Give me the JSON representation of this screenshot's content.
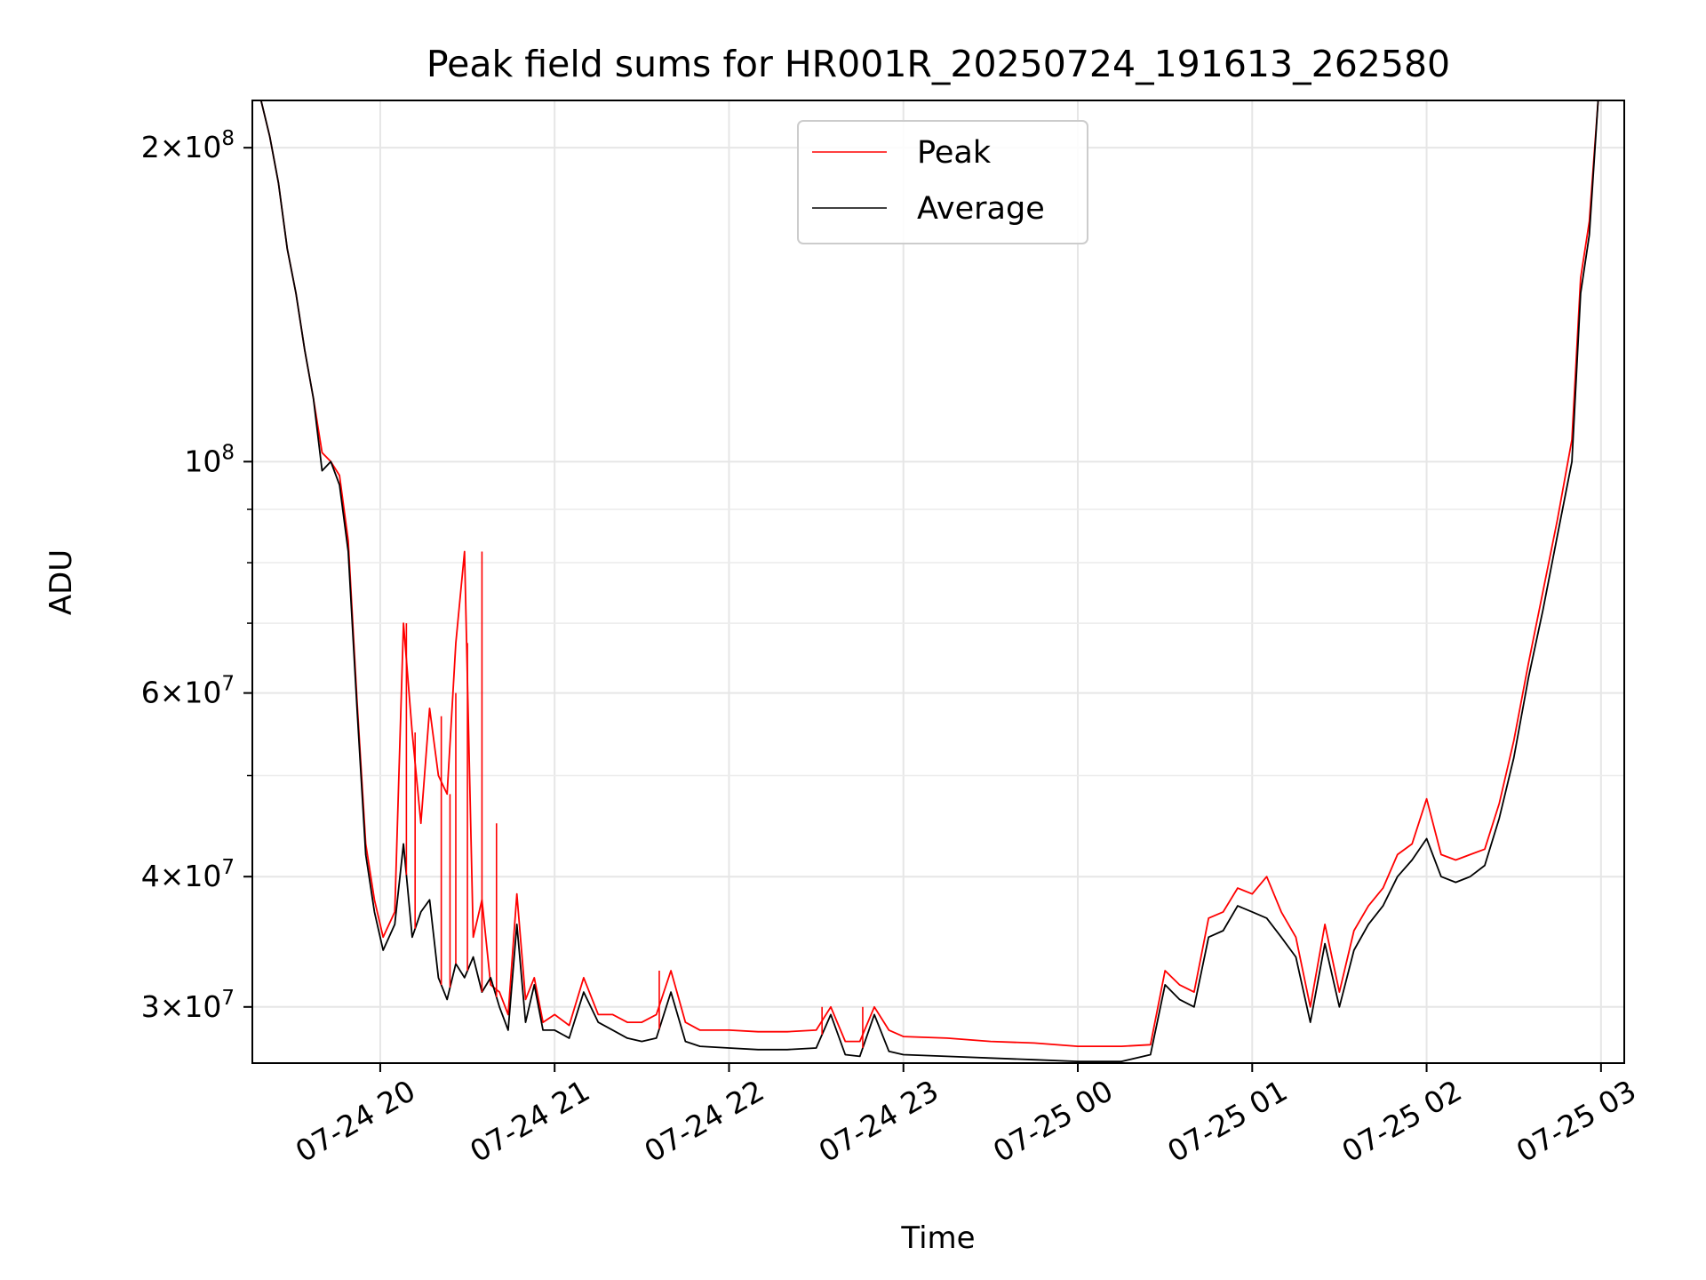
{
  "chart_data": {
    "type": "line",
    "title": "Peak field sums for HR001R_20250724_191613_262580",
    "xlabel": "Time",
    "ylabel": "ADU",
    "y_scale": "log",
    "ylim": [
      26500000,
      222000000
    ],
    "xlim": [
      "2025-07-24 19:16",
      "2025-07-25 03:08"
    ],
    "grid": true,
    "legend_position": "top-center",
    "x_ticks": [
      {
        "value": "2025-07-24 20:00",
        "label": "07-24 20"
      },
      {
        "value": "2025-07-24 21:00",
        "label": "07-24 21"
      },
      {
        "value": "2025-07-24 22:00",
        "label": "07-24 22"
      },
      {
        "value": "2025-07-24 23:00",
        "label": "07-24 23"
      },
      {
        "value": "2025-07-25 00:00",
        "label": "07-25 00"
      },
      {
        "value": "2025-07-25 01:00",
        "label": "07-25 01"
      },
      {
        "value": "2025-07-25 02:00",
        "label": "07-25 02"
      },
      {
        "value": "2025-07-25 03:00",
        "label": "07-25 03"
      }
    ],
    "y_major_ticks": [
      {
        "value": 30000000,
        "mantissa": "3",
        "exp": "7"
      },
      {
        "value": 40000000,
        "mantissa": "4",
        "exp": "7"
      },
      {
        "value": 60000000,
        "mantissa": "6",
        "exp": "7"
      },
      {
        "value": 100000000,
        "mantissa": "",
        "exp": "8"
      },
      {
        "value": 200000000,
        "mantissa": "2",
        "exp": "8"
      }
    ],
    "y_minor_ticks": [
      50000000,
      70000000,
      80000000,
      90000000
    ],
    "series": [
      {
        "name": "Average",
        "color": "#000000",
        "x": [
          "2025-07-24 19:16",
          "2025-07-24 19:19",
          "2025-07-24 19:22",
          "2025-07-24 19:25",
          "2025-07-24 19:28",
          "2025-07-24 19:31",
          "2025-07-24 19:34",
          "2025-07-24 19:37",
          "2025-07-24 19:40",
          "2025-07-24 19:43",
          "2025-07-24 19:46",
          "2025-07-24 19:49",
          "2025-07-24 19:52",
          "2025-07-24 19:55",
          "2025-07-24 19:58",
          "2025-07-24 20:01",
          "2025-07-24 20:05",
          "2025-07-24 20:08",
          "2025-07-24 20:11",
          "2025-07-24 20:14",
          "2025-07-24 20:17",
          "2025-07-24 20:20",
          "2025-07-24 20:23",
          "2025-07-24 20:26",
          "2025-07-24 20:29",
          "2025-07-24 20:32",
          "2025-07-24 20:35",
          "2025-07-24 20:38",
          "2025-07-24 20:41",
          "2025-07-24 20:44",
          "2025-07-24 20:47",
          "2025-07-24 20:50",
          "2025-07-24 20:53",
          "2025-07-24 20:56",
          "2025-07-24 21:00",
          "2025-07-24 21:05",
          "2025-07-24 21:10",
          "2025-07-24 21:15",
          "2025-07-24 21:20",
          "2025-07-24 21:25",
          "2025-07-24 21:30",
          "2025-07-24 21:35",
          "2025-07-24 21:40",
          "2025-07-24 21:45",
          "2025-07-24 21:50",
          "2025-07-24 22:00",
          "2025-07-24 22:10",
          "2025-07-24 22:20",
          "2025-07-24 22:30",
          "2025-07-24 22:35",
          "2025-07-24 22:40",
          "2025-07-24 22:45",
          "2025-07-24 22:50",
          "2025-07-24 22:55",
          "2025-07-24 23:00",
          "2025-07-24 23:15",
          "2025-07-24 23:30",
          "2025-07-24 23:45",
          "2025-07-25 00:00",
          "2025-07-25 00:15",
          "2025-07-25 00:25",
          "2025-07-25 00:30",
          "2025-07-25 00:35",
          "2025-07-25 00:40",
          "2025-07-25 00:45",
          "2025-07-25 00:50",
          "2025-07-25 00:55",
          "2025-07-25 01:00",
          "2025-07-25 01:05",
          "2025-07-25 01:10",
          "2025-07-25 01:15",
          "2025-07-25 01:20",
          "2025-07-25 01:25",
          "2025-07-25 01:30",
          "2025-07-25 01:35",
          "2025-07-25 01:40",
          "2025-07-25 01:45",
          "2025-07-25 01:50",
          "2025-07-25 01:55",
          "2025-07-25 02:00",
          "2025-07-25 02:05",
          "2025-07-25 02:10",
          "2025-07-25 02:15",
          "2025-07-25 02:20",
          "2025-07-25 02:25",
          "2025-07-25 02:30",
          "2025-07-25 02:35",
          "2025-07-25 02:40",
          "2025-07-25 02:45",
          "2025-07-25 02:50",
          "2025-07-25 02:53",
          "2025-07-25 02:56",
          "2025-07-25 02:59"
        ],
        "values": [
          222000000,
          222000000,
          205000000,
          185000000,
          160000000,
          145000000,
          128000000,
          115000000,
          98000000,
          100000000,
          95000000,
          82000000,
          58000000,
          42000000,
          37000000,
          34000000,
          36000000,
          43000000,
          35000000,
          37000000,
          38000000,
          32000000,
          30500000,
          33000000,
          32000000,
          33500000,
          31000000,
          32000000,
          30000000,
          28500000,
          36000000,
          29000000,
          31500000,
          28500000,
          28500000,
          28000000,
          31000000,
          29000000,
          28500000,
          28000000,
          27800000,
          28000000,
          31000000,
          27800000,
          27500000,
          27400000,
          27300000,
          27300000,
          27400000,
          29500000,
          27000000,
          26900000,
          29500000,
          27200000,
          27000000,
          26900000,
          26800000,
          26700000,
          26600000,
          26600000,
          27000000,
          31500000,
          30500000,
          30000000,
          35000000,
          35500000,
          37500000,
          37000000,
          36500000,
          35000000,
          33500000,
          29000000,
          34500000,
          30000000,
          34000000,
          36000000,
          37500000,
          40000000,
          41500000,
          43500000,
          40000000,
          39500000,
          40000000,
          41000000,
          45500000,
          52000000,
          62000000,
          72000000,
          85000000,
          100000000,
          145000000,
          165000000,
          222000000
        ]
      },
      {
        "name": "Peak",
        "color": "#ff0000",
        "x": [
          "2025-07-24 19:16",
          "2025-07-24 19:19",
          "2025-07-24 19:22",
          "2025-07-24 19:25",
          "2025-07-24 19:28",
          "2025-07-24 19:31",
          "2025-07-24 19:34",
          "2025-07-24 19:37",
          "2025-07-24 19:40",
          "2025-07-24 19:43",
          "2025-07-24 19:46",
          "2025-07-24 19:49",
          "2025-07-24 19:52",
          "2025-07-24 19:55",
          "2025-07-24 19:58",
          "2025-07-24 20:01",
          "2025-07-24 20:05",
          "2025-07-24 20:08",
          "2025-07-24 20:11",
          "2025-07-24 20:14",
          "2025-07-24 20:17",
          "2025-07-24 20:20",
          "2025-07-24 20:23",
          "2025-07-24 20:26",
          "2025-07-24 20:29",
          "2025-07-24 20:32",
          "2025-07-24 20:35",
          "2025-07-24 20:38",
          "2025-07-24 20:41",
          "2025-07-24 20:44",
          "2025-07-24 20:47",
          "2025-07-24 20:50",
          "2025-07-24 20:53",
          "2025-07-24 20:56",
          "2025-07-24 21:00",
          "2025-07-24 21:05",
          "2025-07-24 21:10",
          "2025-07-24 21:15",
          "2025-07-24 21:20",
          "2025-07-24 21:25",
          "2025-07-24 21:30",
          "2025-07-24 21:35",
          "2025-07-24 21:40",
          "2025-07-24 21:45",
          "2025-07-24 21:50",
          "2025-07-24 22:00",
          "2025-07-24 22:10",
          "2025-07-24 22:20",
          "2025-07-24 22:30",
          "2025-07-24 22:35",
          "2025-07-24 22:40",
          "2025-07-24 22:45",
          "2025-07-24 22:50",
          "2025-07-24 22:55",
          "2025-07-24 23:00",
          "2025-07-24 23:15",
          "2025-07-24 23:30",
          "2025-07-24 23:45",
          "2025-07-25 00:00",
          "2025-07-25 00:15",
          "2025-07-25 00:25",
          "2025-07-25 00:30",
          "2025-07-25 00:35",
          "2025-07-25 00:40",
          "2025-07-25 00:45",
          "2025-07-25 00:50",
          "2025-07-25 00:55",
          "2025-07-25 01:00",
          "2025-07-25 01:05",
          "2025-07-25 01:10",
          "2025-07-25 01:15",
          "2025-07-25 01:20",
          "2025-07-25 01:25",
          "2025-07-25 01:30",
          "2025-07-25 01:35",
          "2025-07-25 01:40",
          "2025-07-25 01:45",
          "2025-07-25 01:50",
          "2025-07-25 01:55",
          "2025-07-25 02:00",
          "2025-07-25 02:05",
          "2025-07-25 02:10",
          "2025-07-25 02:15",
          "2025-07-25 02:20",
          "2025-07-25 02:25",
          "2025-07-25 02:30",
          "2025-07-25 02:35",
          "2025-07-25 02:40",
          "2025-07-25 02:45",
          "2025-07-25 02:50",
          "2025-07-25 02:53",
          "2025-07-25 02:56",
          "2025-07-25 02:59"
        ],
        "values": [
          222000000,
          222000000,
          205000000,
          185000000,
          160000000,
          145000000,
          128000000,
          115000000,
          102000000,
          100000000,
          97000000,
          84000000,
          59000000,
          43000000,
          38000000,
          35000000,
          37000000,
          70000000,
          55000000,
          45000000,
          58000000,
          50000000,
          48000000,
          67000000,
          82000000,
          35000000,
          38000000,
          31500000,
          31000000,
          29500000,
          38500000,
          30500000,
          32000000,
          29000000,
          29500000,
          28800000,
          32000000,
          29500000,
          29500000,
          29000000,
          29000000,
          29500000,
          32500000,
          29000000,
          28500000,
          28500000,
          28400000,
          28400000,
          28500000,
          30000000,
          27800000,
          27800000,
          30000000,
          28500000,
          28100000,
          28000000,
          27800000,
          27700000,
          27500000,
          27500000,
          27600000,
          32500000,
          31500000,
          31000000,
          36500000,
          37000000,
          39000000,
          38500000,
          40000000,
          37000000,
          35000000,
          30000000,
          36000000,
          31000000,
          35500000,
          37500000,
          39000000,
          42000000,
          43000000,
          47500000,
          42000000,
          41500000,
          42000000,
          42500000,
          47000000,
          54000000,
          64000000,
          75000000,
          88000000,
          105000000,
          150000000,
          170000000,
          222000000
        ]
      }
    ],
    "peak_spikes": [
      {
        "x": "2025-07-24 20:09",
        "y": 70000000
      },
      {
        "x": "2025-07-24 20:12",
        "y": 55000000
      },
      {
        "x": "2025-07-24 20:21",
        "y": 57000000
      },
      {
        "x": "2025-07-24 20:24",
        "y": 48000000
      },
      {
        "x": "2025-07-24 20:26",
        "y": 60000000
      },
      {
        "x": "2025-07-24 20:30",
        "y": 67000000
      },
      {
        "x": "2025-07-24 20:35",
        "y": 82000000
      },
      {
        "x": "2025-07-24 20:40",
        "y": 45000000
      },
      {
        "x": "2025-07-24 21:36",
        "y": 32500000
      },
      {
        "x": "2025-07-24 22:32",
        "y": 30000000
      },
      {
        "x": "2025-07-24 22:46",
        "y": 30000000
      }
    ]
  }
}
